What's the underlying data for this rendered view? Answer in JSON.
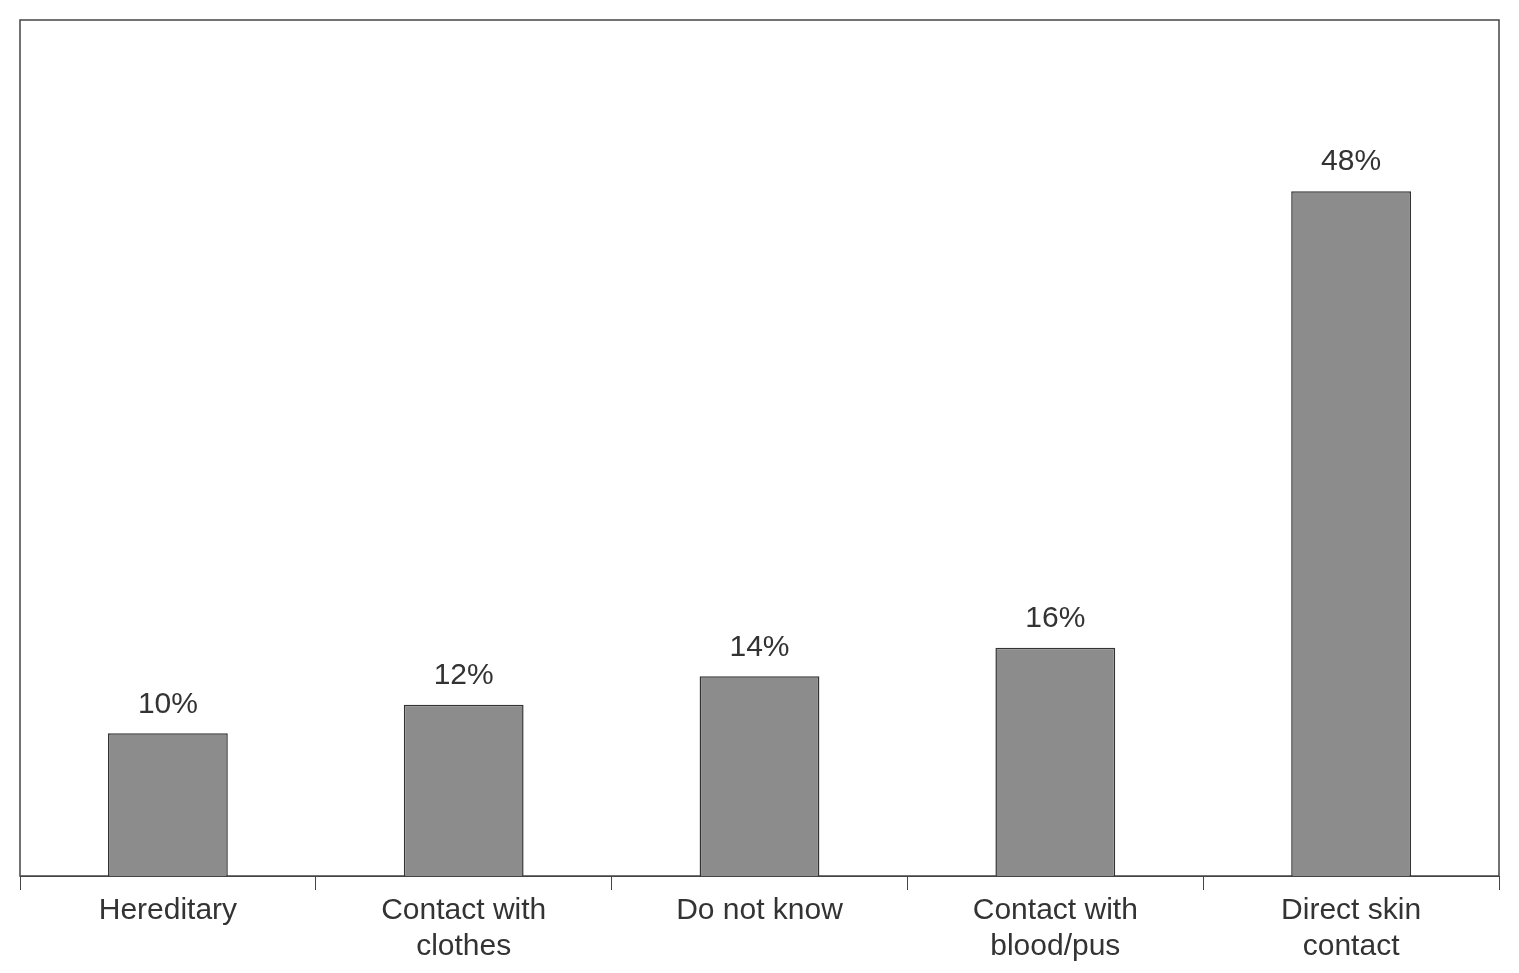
{
  "chart_data": {
    "type": "bar",
    "categories": [
      "Hereditary",
      "Contact with clothes",
      "Do not know",
      "Contact with blood/pus",
      "Direct skin contact"
    ],
    "values": [
      10,
      12,
      14,
      16,
      48
    ],
    "color": "#8c8c8c",
    "value_labels": [
      "10%",
      "12%",
      "14%",
      "16%",
      "48%"
    ],
    "grid": false,
    "legend": false
  }
}
